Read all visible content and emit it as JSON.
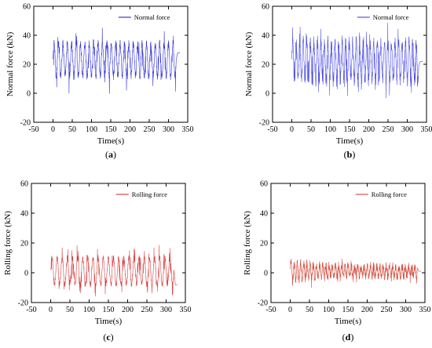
{
  "chart_data": [
    {
      "type": "line",
      "caption": "(a)",
      "xlabel": "Time(s)",
      "ylabel": "Normal force (kN)",
      "xlim": [
        -50,
        350
      ],
      "ylim": [
        -20,
        60
      ],
      "xticks": [
        -50,
        0,
        50,
        100,
        150,
        200,
        250,
        300,
        350
      ],
      "yticks": [
        -20,
        0,
        20,
        40,
        60
      ],
      "legend_position": "top-right",
      "series": [
        {
          "name": "Normal force",
          "color": "#1010d0",
          "t_start": 0,
          "t_end": 320,
          "mean": 23,
          "amplitude": 11,
          "cycles": 28,
          "noise": 3,
          "offset_tail": 28
        }
      ]
    },
    {
      "type": "line",
      "caption": "(b)",
      "xlabel": "Time(s)",
      "ylabel": "Normal force (kN)",
      "xlim": [
        -50,
        350
      ],
      "ylim": [
        -20,
        60
      ],
      "xticks": [
        -50,
        0,
        50,
        100,
        150,
        200,
        250,
        300,
        350
      ],
      "yticks": [
        -20,
        0,
        20,
        40,
        60
      ],
      "legend_position": "top-right",
      "series": [
        {
          "name": "Normal force",
          "color": "#3030e0",
          "t_start": 0,
          "t_end": 330,
          "mean": 22,
          "amplitude": 13,
          "cycles": 36,
          "noise": 5,
          "offset_tail": 22
        }
      ]
    },
    {
      "type": "line",
      "caption": "(c)",
      "xlabel": "Time(s)",
      "ylabel": "Rolling force (kN)",
      "xlim": [
        -50,
        350
      ],
      "ylim": [
        -20,
        60
      ],
      "xticks": [
        -50,
        0,
        50,
        100,
        150,
        200,
        250,
        300,
        350
      ],
      "yticks": [
        -20,
        0,
        20,
        40,
        60
      ],
      "legend_position": "top-right",
      "series": [
        {
          "name": "Rolling force",
          "color": "#d02020",
          "t_start": 0,
          "t_end": 320,
          "mean": 1,
          "amplitude": 9,
          "cycles": 24,
          "noise": 2,
          "offset_tail": -8
        }
      ]
    },
    {
      "type": "line",
      "caption": "(d)",
      "xlabel": "Time(s)",
      "ylabel": "Rolling force (kN)",
      "xlim": [
        -50,
        350
      ],
      "ylim": [
        -20,
        60
      ],
      "xticks": [
        -50,
        0,
        50,
        100,
        150,
        200,
        250,
        300,
        350
      ],
      "yticks": [
        -20,
        0,
        20,
        40,
        60
      ],
      "legend_position": "top-right",
      "series": [
        {
          "name": "Rolling force",
          "color": "#d03020",
          "t_start": 0,
          "t_end": 330,
          "mean": 1,
          "amplitude": 7,
          "cycles": 40,
          "noise": 3,
          "offset_tail": 1,
          "decay": true
        }
      ]
    }
  ]
}
